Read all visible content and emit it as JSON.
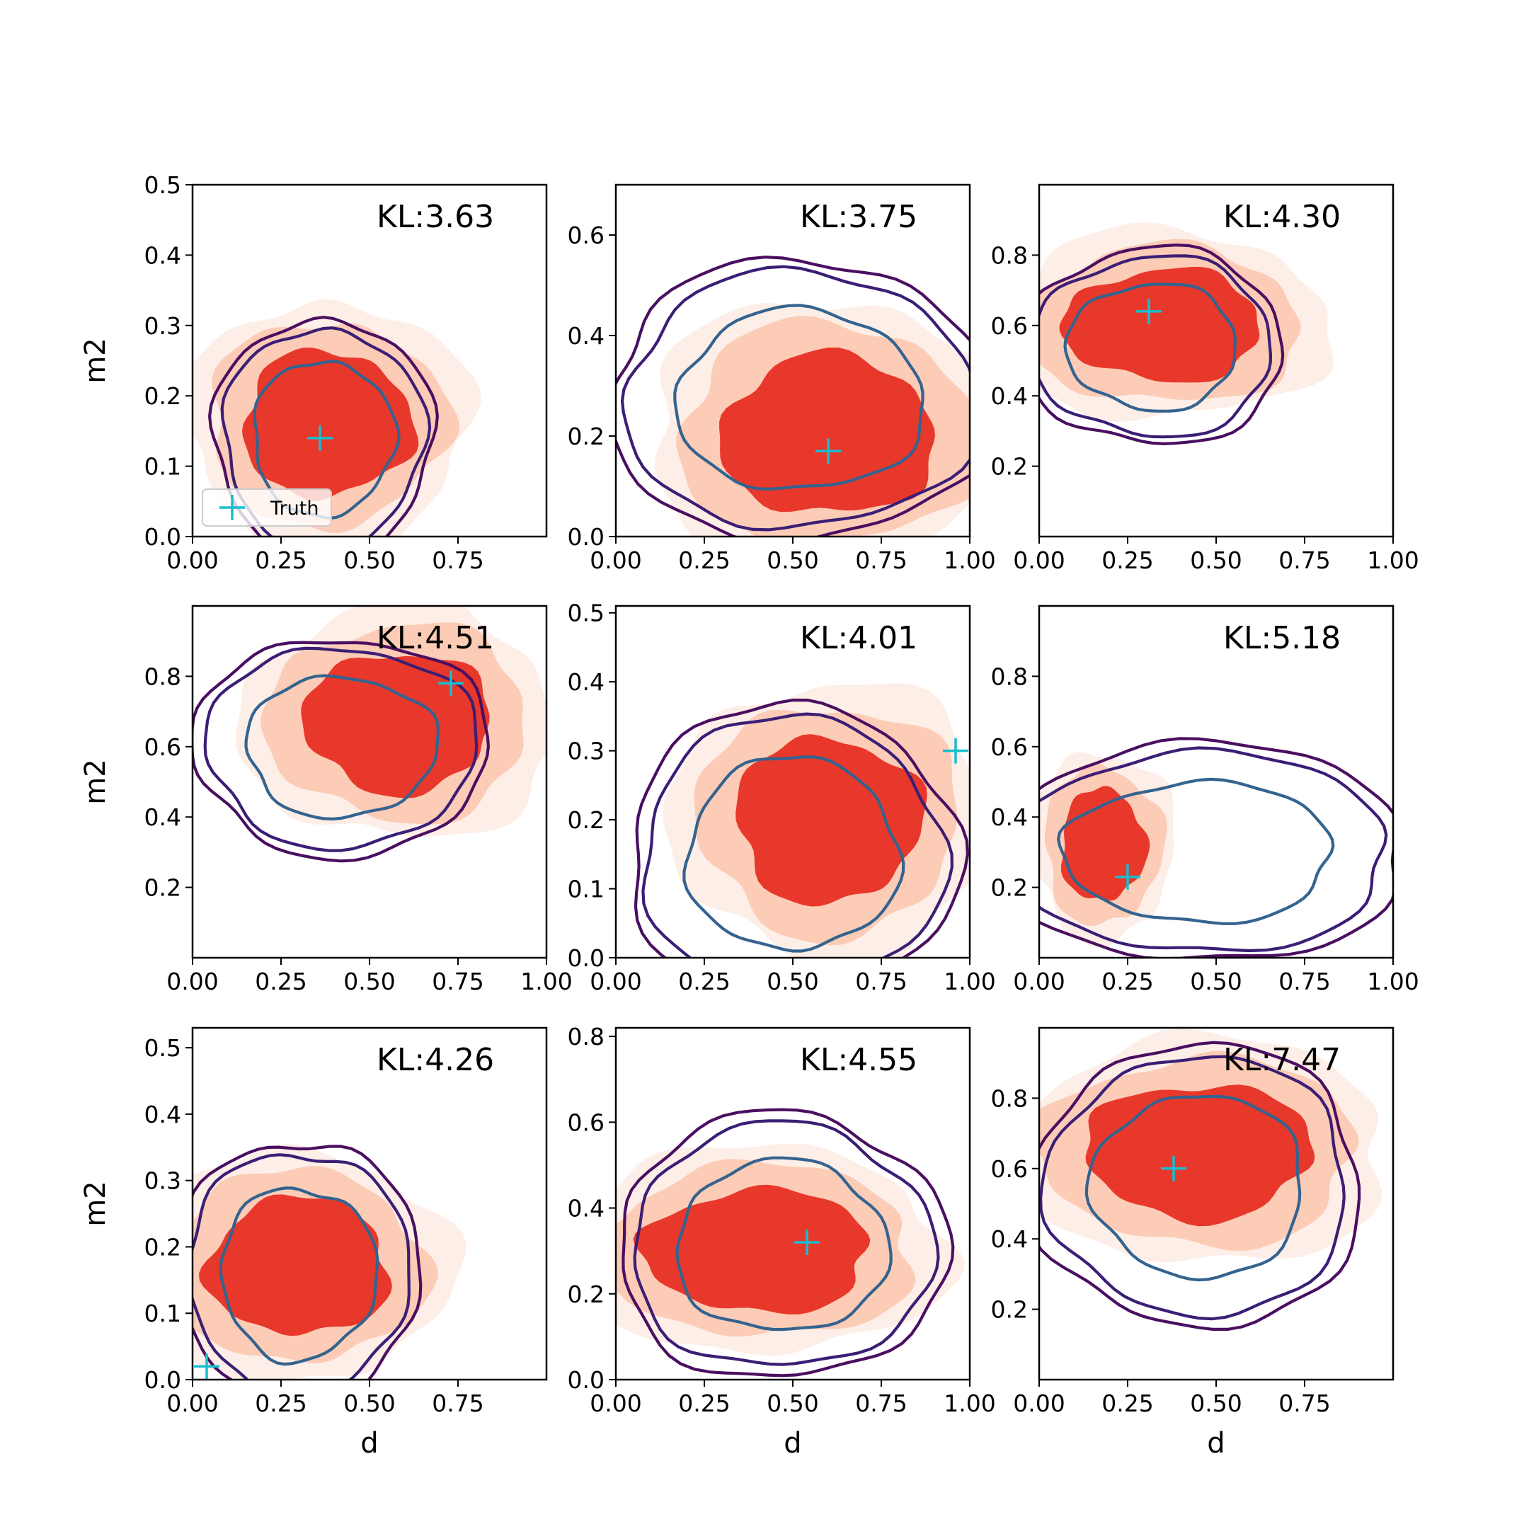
{
  "figure": {
    "legend_label": "Truth"
  },
  "colors": {
    "fill_light": "#fdeee7",
    "fill_mid": "#fcccb6",
    "fill_dark": "#e8382b",
    "contour_outer": "#4a0f61",
    "contour_middle": "#3b1e75",
    "contour_inner": "#34638f",
    "truth_marker": "#17becf"
  },
  "chart_data": [
    {
      "type": "contour",
      "row": 0,
      "col": 0,
      "kl_text": "KL:3.63",
      "ylabel": "m2",
      "xlabel": "",
      "xlim": [
        0,
        1.0
      ],
      "ylim": [
        0,
        0.5
      ],
      "xticks": [
        "0.00",
        "0.25",
        "0.50",
        "0.75"
      ],
      "xtick_values": [
        0,
        0.25,
        0.5,
        0.75
      ],
      "yticks": [
        "0.0",
        "0.1",
        "0.2",
        "0.3",
        "0.4",
        "0.5"
      ],
      "ytick_values": [
        0,
        0.1,
        0.2,
        0.3,
        0.4,
        0.5
      ],
      "truth": [
        0.36,
        0.14
      ],
      "fill_center": [
        0.38,
        0.16
      ],
      "fill_spread": [
        0.3,
        0.13
      ],
      "contour_center": [
        0.37,
        0.14
      ],
      "contour_spread": [
        0.2,
        0.11
      ],
      "legend": true
    },
    {
      "type": "contour",
      "row": 0,
      "col": 1,
      "kl_text": "KL:3.75",
      "ylabel": "",
      "xlabel": "",
      "xlim": [
        0,
        1.0
      ],
      "ylim": [
        0,
        0.7
      ],
      "xticks": [
        "0.00",
        "0.25",
        "0.50",
        "0.75",
        "1.00"
      ],
      "xtick_values": [
        0,
        0.25,
        0.5,
        0.75,
        1.0
      ],
      "yticks": [
        "0.0",
        "0.2",
        "0.4",
        "0.6"
      ],
      "ytick_values": [
        0,
        0.2,
        0.4,
        0.6
      ],
      "truth": [
        0.6,
        0.17
      ],
      "fill_center": [
        0.6,
        0.2
      ],
      "fill_spread": [
        0.38,
        0.2
      ],
      "contour_center": [
        0.52,
        0.27
      ],
      "contour_spread": [
        0.35,
        0.18
      ],
      "legend": false
    },
    {
      "type": "contour",
      "row": 0,
      "col": 2,
      "kl_text": "KL:4.30",
      "ylabel": "",
      "xlabel": "",
      "xlim": [
        0,
        1.0
      ],
      "ylim": [
        0,
        1.0
      ],
      "xticks": [
        "0.00",
        "0.25",
        "0.50",
        "0.75",
        "1.00"
      ],
      "xtick_values": [
        0,
        0.25,
        0.5,
        0.75,
        1.0
      ],
      "yticks": [
        "0.2",
        "0.4",
        "0.6",
        "0.8"
      ],
      "ytick_values": [
        0.2,
        0.4,
        0.6,
        0.8
      ],
      "truth": [
        0.31,
        0.64
      ],
      "fill_center": [
        0.35,
        0.6
      ],
      "fill_spread": [
        0.35,
        0.2
      ],
      "contour_center": [
        0.32,
        0.54
      ],
      "contour_spread": [
        0.24,
        0.18
      ],
      "legend": false
    },
    {
      "type": "contour",
      "row": 1,
      "col": 0,
      "kl_text": "KL:4.51",
      "ylabel": "m2",
      "xlabel": "",
      "xlim": [
        0,
        1.0
      ],
      "ylim": [
        0,
        1.0
      ],
      "xticks": [
        "0.00",
        "0.25",
        "0.50",
        "0.75",
        "1.00"
      ],
      "xtick_values": [
        0,
        0.25,
        0.5,
        0.75,
        1.0
      ],
      "yticks": [
        "0.2",
        "0.4",
        "0.6",
        "0.8"
      ],
      "ytick_values": [
        0.2,
        0.4,
        0.6,
        0.8
      ],
      "truth": [
        0.73,
        0.78
      ],
      "fill_center": [
        0.58,
        0.67
      ],
      "fill_spread": [
        0.33,
        0.25
      ],
      "contour_center": [
        0.42,
        0.6
      ],
      "contour_spread": [
        0.27,
        0.2
      ],
      "legend": false
    },
    {
      "type": "contour",
      "row": 1,
      "col": 1,
      "kl_text": "KL:4.01",
      "ylabel": "",
      "xlabel": "",
      "xlim": [
        0,
        1.0
      ],
      "ylim": [
        0,
        0.51
      ],
      "xticks": [
        "0.00",
        "0.25",
        "0.50",
        "0.75",
        "1.00"
      ],
      "xtick_values": [
        0,
        0.25,
        0.5,
        0.75,
        1.0
      ],
      "yticks": [
        "0.0",
        "0.1",
        "0.2",
        "0.3",
        "0.4",
        "0.5"
      ],
      "ytick_values": [
        0,
        0.1,
        0.2,
        0.3,
        0.4,
        0.5
      ],
      "truth": [
        0.96,
        0.3
      ],
      "fill_center": [
        0.6,
        0.2
      ],
      "fill_spread": [
        0.33,
        0.15
      ],
      "contour_center": [
        0.5,
        0.15
      ],
      "contour_spread": [
        0.3,
        0.14
      ],
      "legend": false
    },
    {
      "type": "contour",
      "row": 1,
      "col": 2,
      "kl_text": "KL:5.18",
      "ylabel": "",
      "xlabel": "",
      "xlim": [
        0,
        1.0
      ],
      "ylim": [
        0,
        1.0
      ],
      "xticks": [
        "0.00",
        "0.25",
        "0.50",
        "0.75",
        "1.00"
      ],
      "xtick_values": [
        0,
        0.25,
        0.5,
        0.75,
        1.0
      ],
      "yticks": [
        "0.2",
        "0.4",
        "0.6",
        "0.8"
      ],
      "ytick_values": [
        0.2,
        0.4,
        0.6,
        0.8
      ],
      "truth": [
        0.25,
        0.23
      ],
      "fill_center": [
        0.18,
        0.32
      ],
      "fill_spread": [
        0.15,
        0.2
      ],
      "contour_center": [
        0.45,
        0.3
      ],
      "contour_spread": [
        0.38,
        0.2
      ],
      "legend": false
    },
    {
      "type": "contour",
      "row": 2,
      "col": 0,
      "kl_text": "KL:4.26",
      "ylabel": "m2",
      "xlabel": "d",
      "xlim": [
        0,
        1.0
      ],
      "ylim": [
        0,
        0.53
      ],
      "xticks": [
        "0.00",
        "0.25",
        "0.50",
        "0.75"
      ],
      "xtick_values": [
        0,
        0.25,
        0.5,
        0.75
      ],
      "yticks": [
        "0.0",
        "0.1",
        "0.2",
        "0.3",
        "0.4",
        "0.5"
      ],
      "ytick_values": [
        0,
        0.1,
        0.2,
        0.3,
        0.4,
        0.5
      ],
      "truth": [
        0.04,
        0.02
      ],
      "fill_center": [
        0.3,
        0.17
      ],
      "fill_spread": [
        0.32,
        0.13
      ],
      "contour_center": [
        0.3,
        0.16
      ],
      "contour_spread": [
        0.22,
        0.13
      ],
      "legend": false
    },
    {
      "type": "contour",
      "row": 2,
      "col": 1,
      "kl_text": "KL:4.55",
      "ylabel": "",
      "xlabel": "d",
      "xlim": [
        0,
        1.0
      ],
      "ylim": [
        0,
        0.82
      ],
      "xticks": [
        "0.00",
        "0.25",
        "0.50",
        "0.75",
        "1.00"
      ],
      "xtick_values": [
        0,
        0.25,
        0.5,
        0.75,
        1.0
      ],
      "yticks": [
        "0.0",
        "0.2",
        "0.4",
        "0.6",
        "0.8"
      ],
      "ytick_values": [
        0,
        0.2,
        0.4,
        0.6,
        0.8
      ],
      "truth": [
        0.54,
        0.32
      ],
      "fill_center": [
        0.4,
        0.3
      ],
      "fill_spread": [
        0.4,
        0.18
      ],
      "contour_center": [
        0.47,
        0.31
      ],
      "contour_spread": [
        0.3,
        0.2
      ],
      "legend": false
    },
    {
      "type": "contour",
      "row": 2,
      "col": 2,
      "kl_text": "KL:7.47",
      "ylabel": "",
      "xlabel": "d",
      "xlim": [
        0,
        1.0
      ],
      "ylim": [
        0,
        1.0
      ],
      "xticks": [
        "0.00",
        "0.25",
        "0.50",
        "0.75"
      ],
      "xtick_values": [
        0,
        0.25,
        0.5,
        0.75
      ],
      "yticks": [
        "0.2",
        "0.4",
        "0.6",
        "0.8"
      ],
      "ytick_values": [
        0.2,
        0.4,
        0.6,
        0.8
      ],
      "truth": [
        0.38,
        0.6
      ],
      "fill_center": [
        0.45,
        0.65
      ],
      "fill_spread": [
        0.4,
        0.24
      ],
      "contour_center": [
        0.45,
        0.55
      ],
      "contour_spread": [
        0.3,
        0.26
      ],
      "legend": false
    }
  ]
}
